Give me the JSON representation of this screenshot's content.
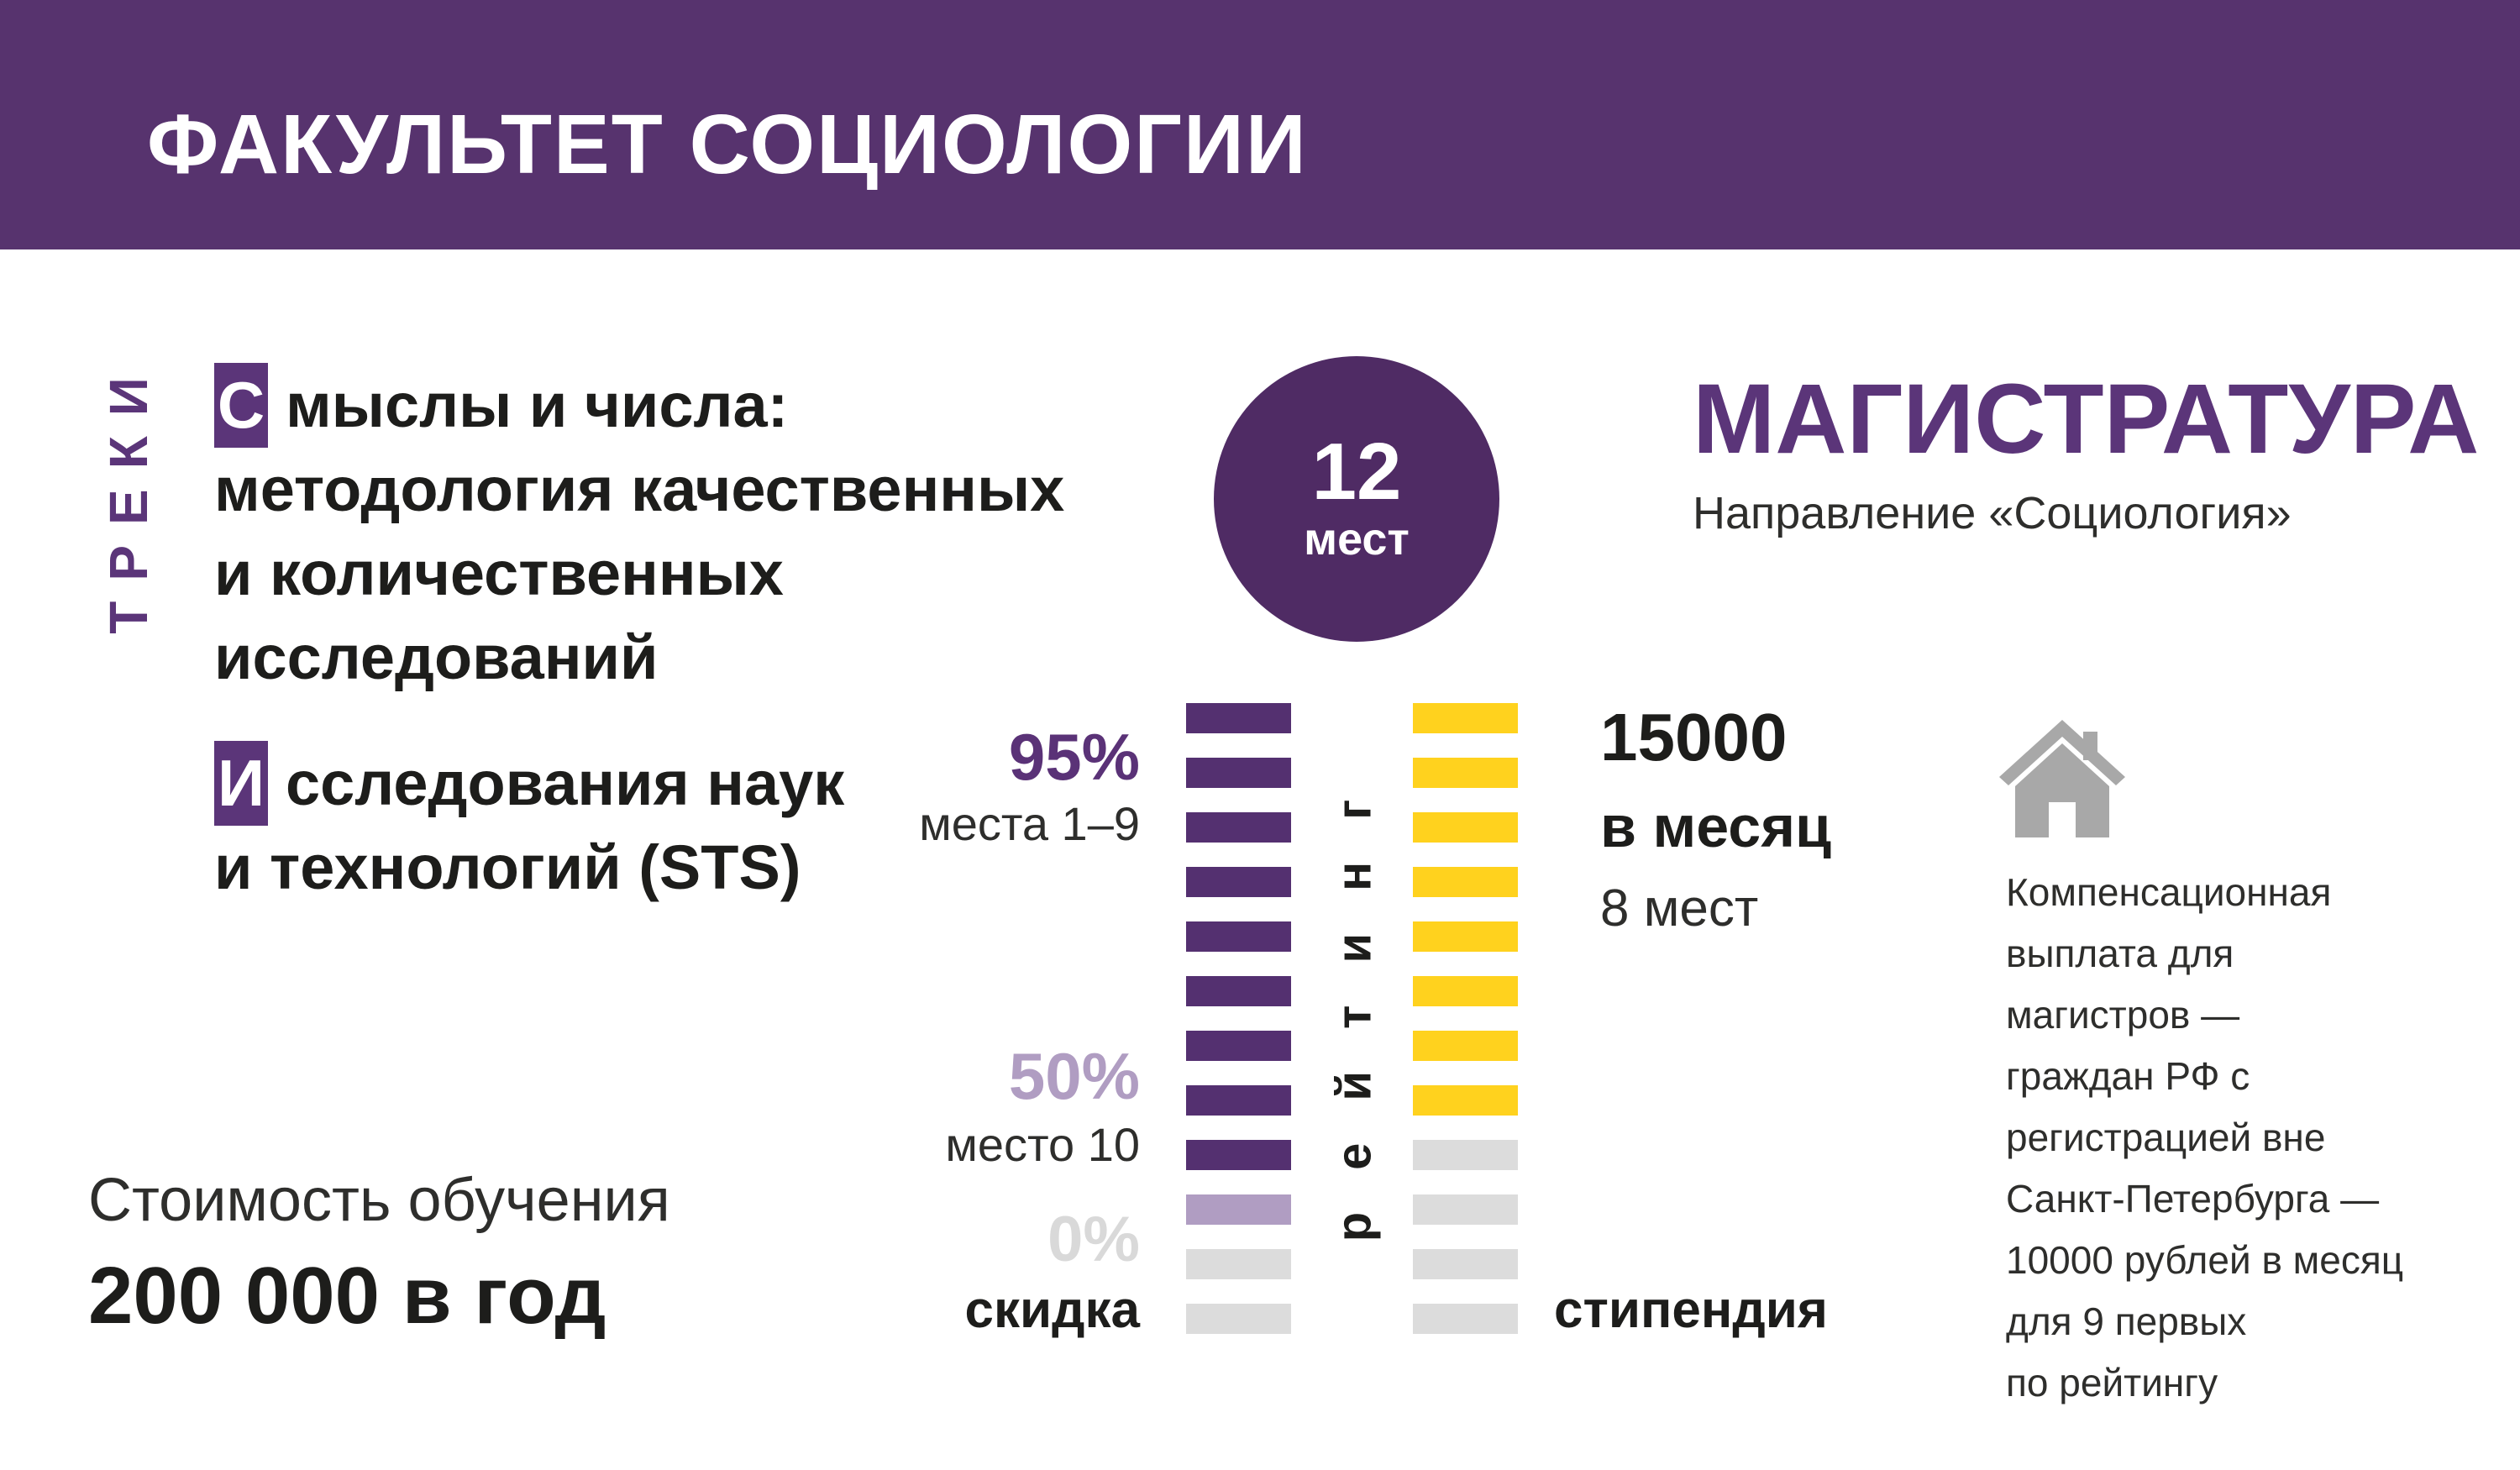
{
  "header": {
    "title": "ФАКУЛЬТЕТ СОЦИОЛОГИИ"
  },
  "tracks_label": "ТРЕКИ",
  "tracks": [
    {
      "initial": "С",
      "rest_of_first_line": "мыслы и числа:",
      "lines": [
        "методология качественных",
        "и количественных",
        "исследований"
      ]
    },
    {
      "initial": "И",
      "rest_of_first_line": "сследования наук",
      "lines": [
        "и технологий (STS)"
      ]
    }
  ],
  "seats_badge": {
    "number": "12",
    "unit": "мест"
  },
  "program": {
    "degree": "МАГИСТРАТУРА",
    "direction": "Направление «Социология»"
  },
  "discount_column": {
    "value_95": "95%",
    "label_95": "места 1–9",
    "value_50": "50%",
    "label_50": "место 10",
    "value_0": "0%",
    "axis_label": "скидка"
  },
  "scholarship_column": {
    "amount": "15000",
    "period": "в месяц",
    "seats": "8 мест",
    "axis_label": "стипендия"
  },
  "rating_axis_label": "рейтинг",
  "tuition": {
    "label": "Стоимость обучения",
    "value": "200 000 в год"
  },
  "compensation_note": {
    "icon": "house-icon",
    "lines": [
      "Компенсационная",
      "выплата для",
      "магистров —",
      "граждан РФ с",
      "регистрацией вне",
      "Санкт-Петербурга —",
      "10000 рублей в месяц",
      "для 9 первых",
      "по рейтингу"
    ]
  },
  "colors": {
    "header_bg": "#57336e",
    "brand_purple": "#5b3579",
    "bar_purple": "#543070",
    "circle_purple": "#4f2b64",
    "lavender": "#b09dc2",
    "bar_gray": "#dcdcdc",
    "yellow": "#ffd21e",
    "pale_value_text": "#d9d9d9",
    "icon_gray": "#a8a8a8",
    "text_black": "#1d1d1b",
    "text_thin": "#2e2e2c"
  },
  "chart_data": {
    "type": "bar",
    "title": "рейтинг",
    "orientation": "horizontal-rows-top-to-bottom",
    "rows": 12,
    "row_meaning": "места 1–12 по рейтингу",
    "series": [
      {
        "name": "скидка",
        "unit": "%",
        "values": [
          95,
          95,
          95,
          95,
          95,
          95,
          95,
          95,
          95,
          50,
          0,
          0
        ]
      },
      {
        "name": "стипендия",
        "unit": "руб/мес",
        "values": [
          15000,
          15000,
          15000,
          15000,
          15000,
          15000,
          15000,
          15000,
          0,
          0,
          0,
          0
        ]
      }
    ],
    "annotations": [
      {
        "text": "95%",
        "applies_to": "места 1–9"
      },
      {
        "text": "50%",
        "applies_to": "место 10"
      },
      {
        "text": "0%",
        "applies_to": "места 11–12"
      },
      {
        "text": "15000 в месяц",
        "applies_to": "8 мест"
      }
    ],
    "legend_position": "none",
    "grid": false
  }
}
